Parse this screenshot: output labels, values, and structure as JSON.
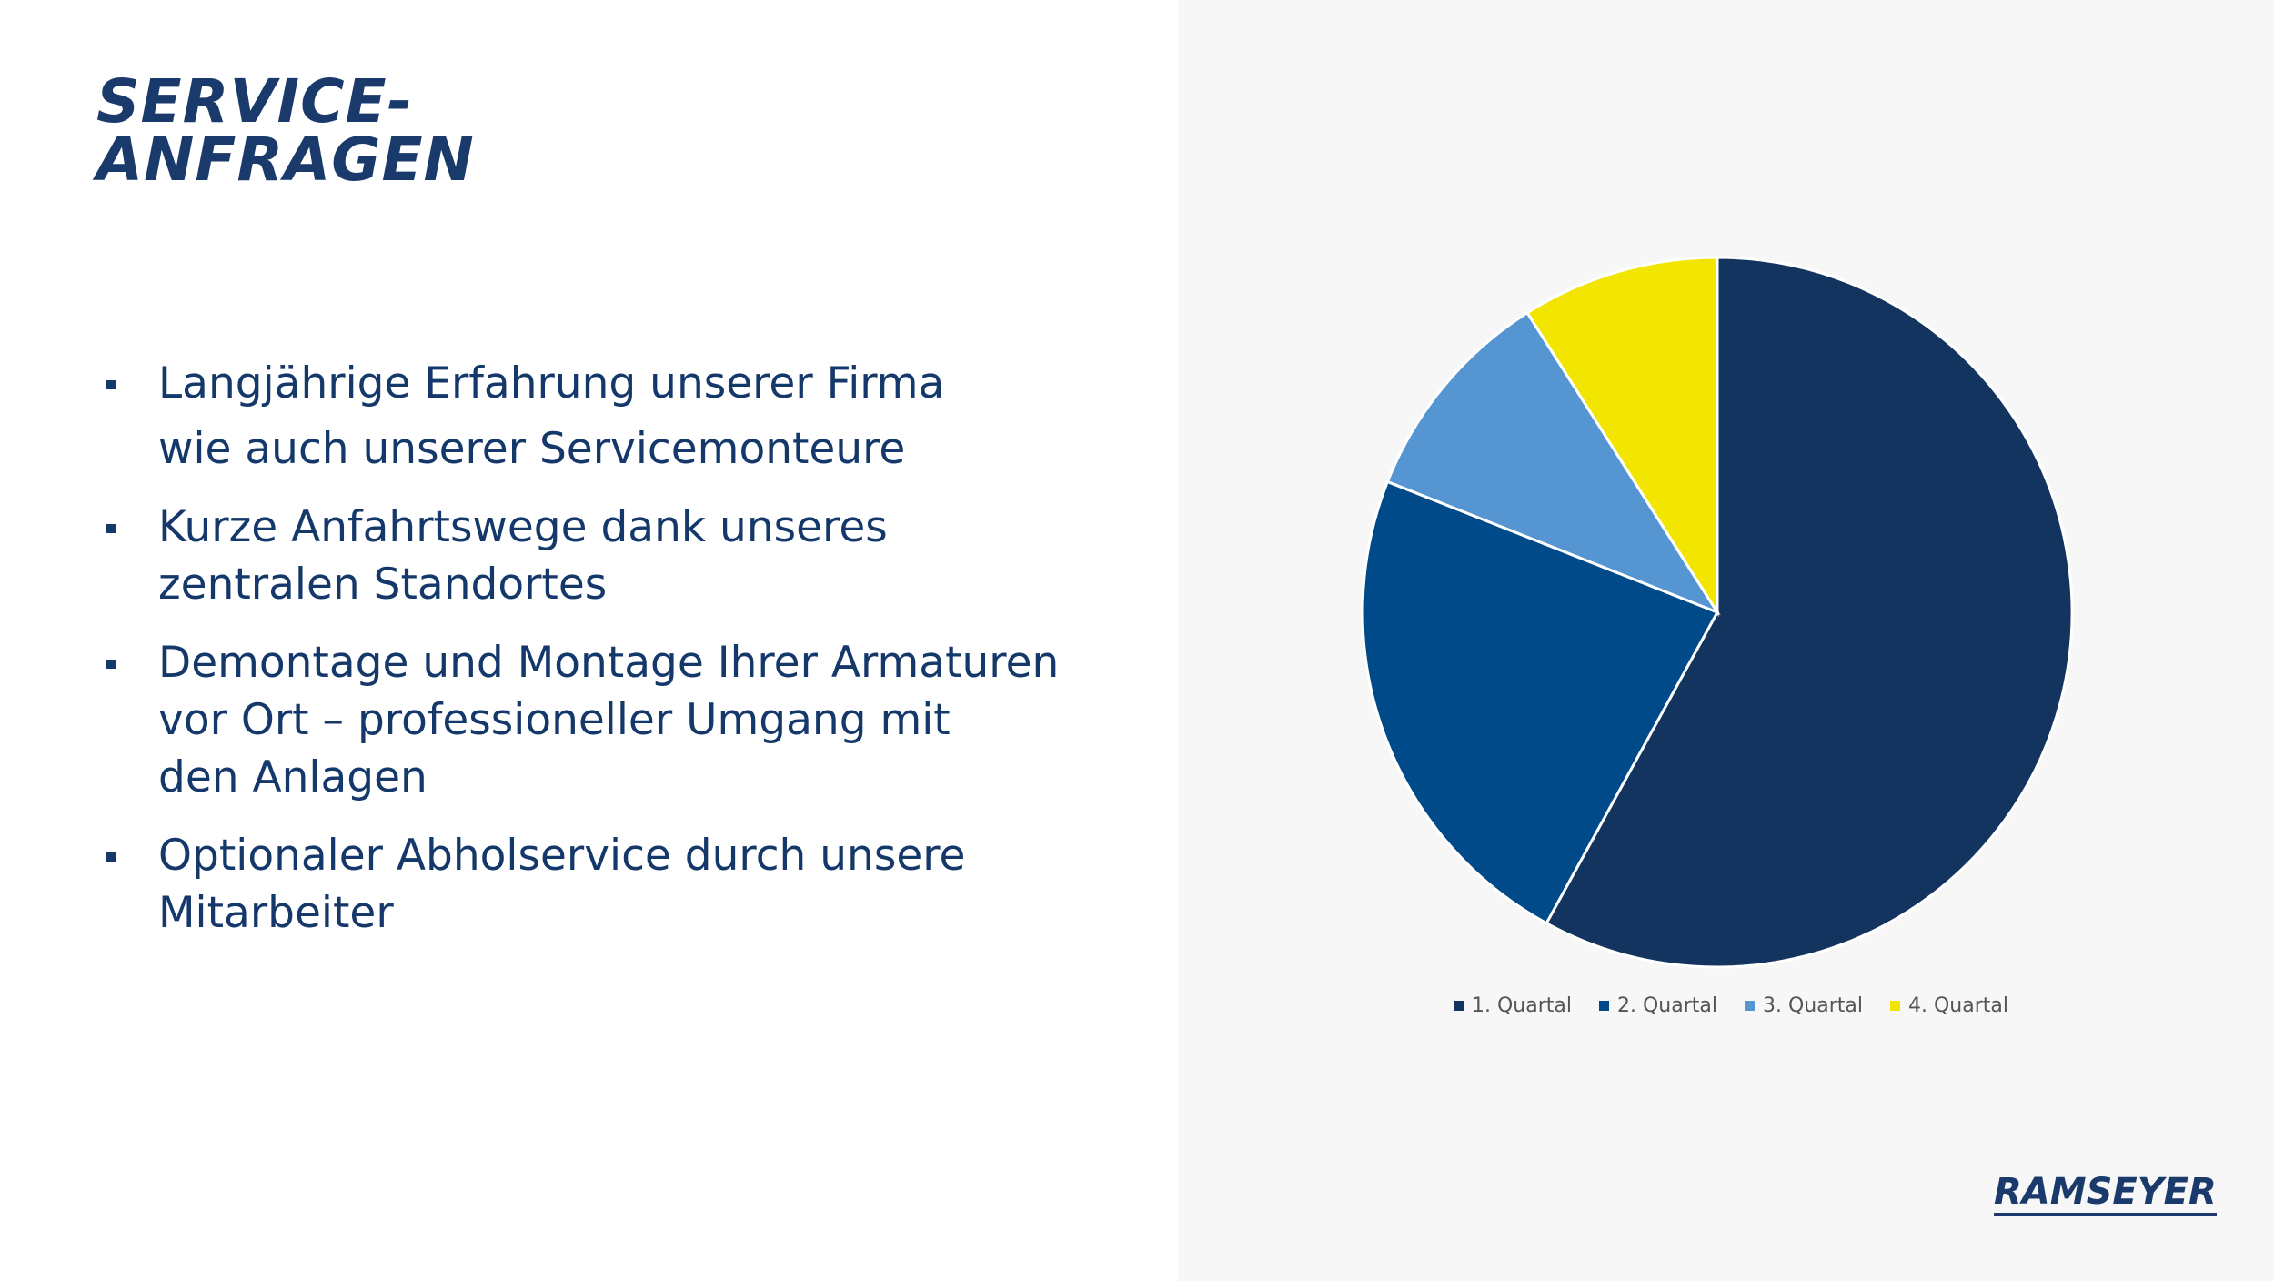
{
  "slide": {
    "title_line1": "SERVICE-",
    "title_line2": "ANFRAGEN",
    "bullets": [
      {
        "lines": [
          "Langjährige Erfahrung unserer Firma",
          "wie auch unserer Servicemonteure"
        ]
      },
      {
        "lines": [
          "Kurze Anfahrtswege dank unseres",
          "zentralen Standortes"
        ]
      },
      {
        "lines": [
          "Demontage und Montage Ihrer Armaturen",
          "vor Ort – professioneller Umgang mit",
          "den Anlagen"
        ]
      },
      {
        "lines": [
          "Optionaler Abholservice durch unsere",
          "Mitarbeiter"
        ]
      }
    ],
    "logo_text": "RAMSEYER"
  },
  "colors": {
    "title": "#1a3a6b",
    "text": "#14386a",
    "right_panel_bg": "#f7f7f7"
  },
  "chart_data": {
    "type": "pie",
    "categories": [
      "1. Quartal",
      "2. Quartal",
      "3. Quartal",
      "4. Quartal"
    ],
    "values": [
      58,
      23,
      10,
      9
    ],
    "colors": [
      "#12345f",
      "#004a8a",
      "#5596d2",
      "#f2e600"
    ],
    "start_angle": "12 o'clock, clockwise",
    "legend_position": "bottom"
  }
}
